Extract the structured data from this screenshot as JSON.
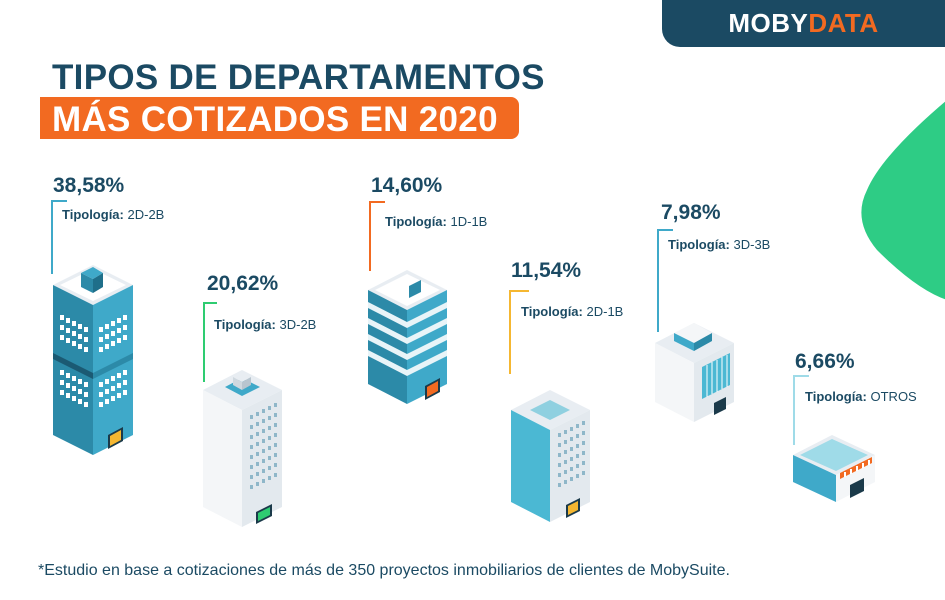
{
  "brand": {
    "part1": "MOBY",
    "part2": "DATA"
  },
  "title": {
    "line1": "TIPOS DE DEPARTAMENTOS",
    "line2": "MÁS COTIZADOS EN 2020"
  },
  "tipologia_label": "Tipología:",
  "items": [
    {
      "percent": "38,58%",
      "type": "2D-2B",
      "color": "#3fa9c9"
    },
    {
      "percent": "20,62%",
      "type": "3D-2B",
      "color": "#2ecc71"
    },
    {
      "percent": "14,60%",
      "type": "1D-1B",
      "color": "#f26a21"
    },
    {
      "percent": "11,54%",
      "type": "2D-1B",
      "color": "#f5b731"
    },
    {
      "percent": "7,98%",
      "type": "3D-3B",
      "color": "#3fa9c9"
    },
    {
      "percent": "6,66%",
      "type": "OTROS",
      "color": "#9fdbe8"
    }
  ],
  "footnote": "*Estudio en base a cotizaciones de más de 350 proyectos inmobiliarios de clientes de MobySuite."
}
